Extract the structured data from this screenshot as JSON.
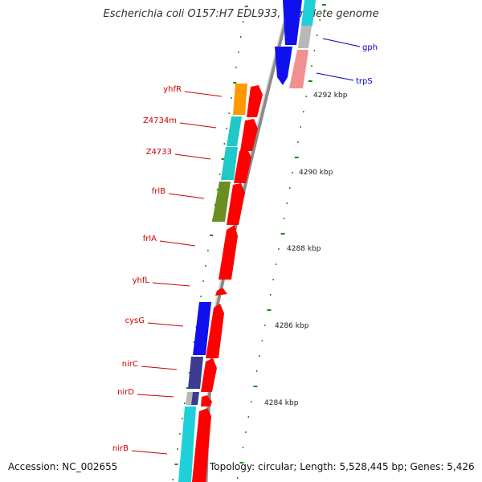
{
  "title": "Escherichia coli O157:H7 EDL933, complete genome",
  "footer": {
    "accession": "Accession: NC_002655",
    "summary": "Topology: circular; Length: 5,528,445 bp; Genes: 5,426"
  },
  "colors": {
    "backbone": "#999999",
    "forward_strand": "#ff0000",
    "reverse_label": "#0000cc",
    "forward_label": "#cc0000",
    "tick": "#1a8a1a"
  },
  "gene_labels_left": [
    "yhfR",
    "Z4734m",
    "Z4733",
    "frlB",
    "frlA",
    "yhfL",
    "cysG",
    "nirC",
    "nirD",
    "nirB"
  ],
  "gene_labels_right": [
    "gph",
    "trpS"
  ],
  "kbp_ticks": [
    "4292 kbp",
    "4290 kbp",
    "4288 kbp",
    "4286 kbp",
    "4284 kbp"
  ]
}
